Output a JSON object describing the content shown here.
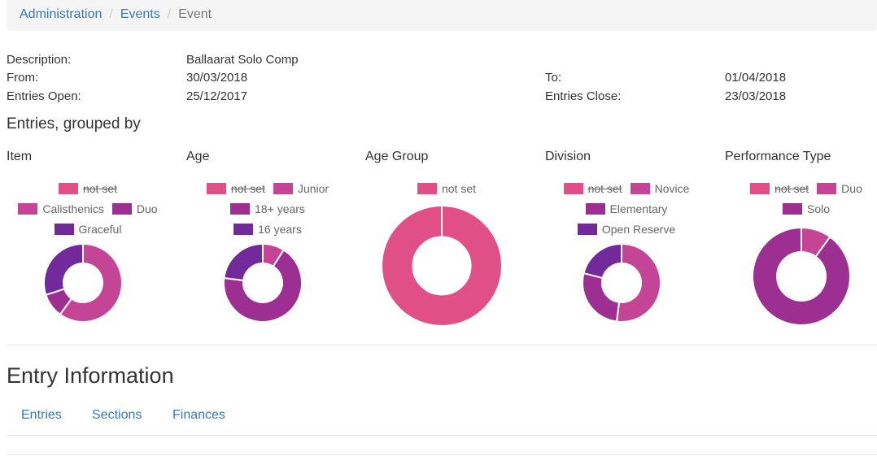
{
  "breadcrumb": {
    "items": [
      "Administration",
      "Events"
    ],
    "separator": "/",
    "active": "Event"
  },
  "event": {
    "description_label": "Description:",
    "description_value": "Ballaarat Solo Comp",
    "from_label": "From:",
    "from_value": "30/03/2018",
    "to_label": "To:",
    "to_value": "01/04/2018",
    "entries_open_label": "Entries Open:",
    "entries_open_value": "25/12/2017",
    "entries_close_label": "Entries Close:",
    "entries_close_value": "23/03/2018"
  },
  "grouped_title": "Entries, grouped by",
  "chart_data": [
    {
      "type": "pie",
      "title": "Item",
      "legend": [
        {
          "label": "not set",
          "color": "#e05087",
          "hidden": true
        },
        {
          "label": "Calisthenics",
          "color": "#c44595",
          "hidden": false
        },
        {
          "label": "Duo",
          "color": "#9c2f91",
          "hidden": false
        },
        {
          "label": "Graceful",
          "color": "#722a9a",
          "hidden": false
        }
      ],
      "slices": [
        {
          "label": "Calisthenics",
          "value": 60,
          "color": "#c44595"
        },
        {
          "label": "Duo",
          "value": 10,
          "color": "#9c2f91"
        },
        {
          "label": "Graceful",
          "value": 30,
          "color": "#722a9a"
        }
      ]
    },
    {
      "type": "pie",
      "title": "Age",
      "legend": [
        {
          "label": "not set",
          "color": "#e05087",
          "hidden": true
        },
        {
          "label": "Junior",
          "color": "#c44595",
          "hidden": false
        },
        {
          "label": "18+ years",
          "color": "#9c2f91",
          "hidden": false
        },
        {
          "label": "16 years",
          "color": "#722a9a",
          "hidden": false
        }
      ],
      "slices": [
        {
          "label": "Junior",
          "value": 9,
          "color": "#c44595"
        },
        {
          "label": "18+ years",
          "value": 68,
          "color": "#9c2f91"
        },
        {
          "label": "16 years",
          "value": 23,
          "color": "#722a9a"
        }
      ]
    },
    {
      "type": "pie",
      "title": "Age Group",
      "legend": [
        {
          "label": "not set",
          "color": "#e05087",
          "hidden": false
        }
      ],
      "slices": [
        {
          "label": "not set",
          "value": 100,
          "color": "#e05087"
        }
      ]
    },
    {
      "type": "pie",
      "title": "Division",
      "legend": [
        {
          "label": "not set",
          "color": "#e05087",
          "hidden": true
        },
        {
          "label": "Novice",
          "color": "#c44595",
          "hidden": false
        },
        {
          "label": "Elementary",
          "color": "#9c2f91",
          "hidden": false
        },
        {
          "label": "Open Reserve",
          "color": "#722a9a",
          "hidden": false
        }
      ],
      "slices": [
        {
          "label": "Novice",
          "value": 52,
          "color": "#c44595"
        },
        {
          "label": "Elementary",
          "value": 27,
          "color": "#9c2f91"
        },
        {
          "label": "Open Reserve",
          "value": 21,
          "color": "#722a9a"
        }
      ]
    },
    {
      "type": "pie",
      "title": "Performance Type",
      "legend": [
        {
          "label": "not set",
          "color": "#e05087",
          "hidden": true
        },
        {
          "label": "Duo",
          "color": "#c44595",
          "hidden": false
        },
        {
          "label": "Solo",
          "color": "#9c2f91",
          "hidden": false
        }
      ],
      "slices": [
        {
          "label": "Duo",
          "value": 10,
          "color": "#c44595"
        },
        {
          "label": "Solo",
          "value": 90,
          "color": "#9c2f91"
        }
      ]
    }
  ],
  "entry_info": {
    "title": "Entry Information",
    "tabs": [
      "Entries",
      "Sections",
      "Finances"
    ]
  }
}
